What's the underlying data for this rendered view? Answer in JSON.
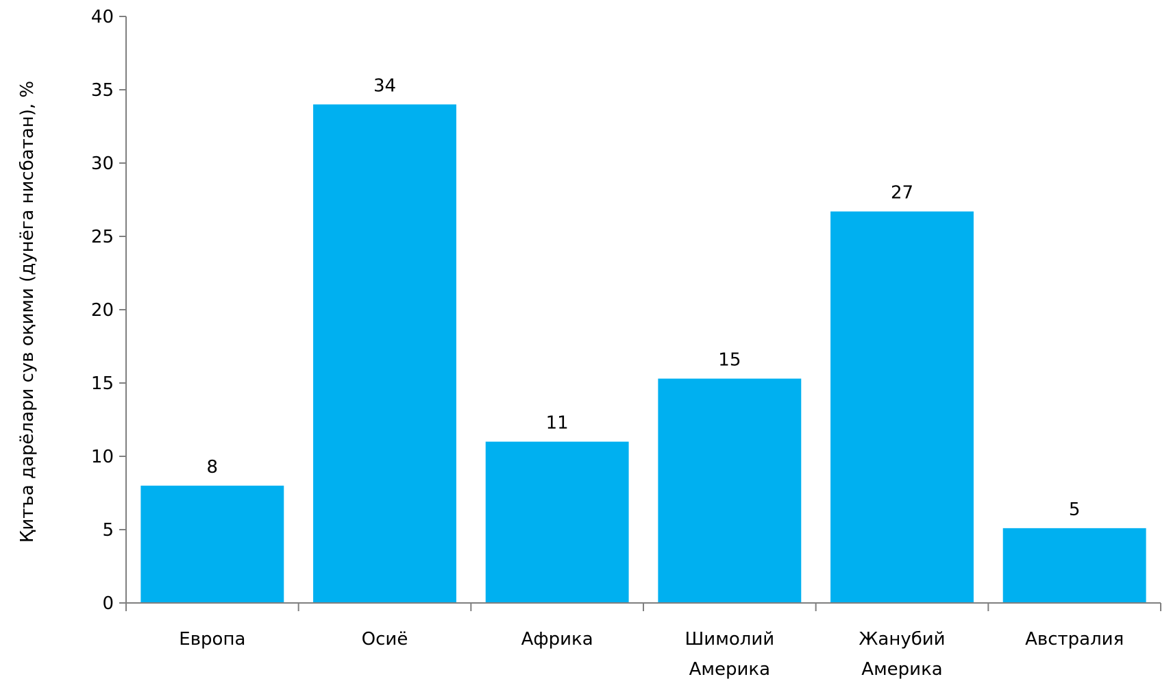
{
  "chart_data": {
    "type": "bar",
    "categories": [
      [
        "Европа"
      ],
      [
        "Осиё"
      ],
      [
        "Африка"
      ],
      [
        "Шимолий",
        "Америка"
      ],
      [
        "Жанубий",
        "Америка"
      ],
      [
        "Австралия"
      ]
    ],
    "values": [
      8,
      34,
      11,
      15.3,
      26.7,
      5.1
    ],
    "data_labels": [
      "8",
      "34",
      "11",
      "15",
      "27",
      "5"
    ],
    "title": "",
    "xlabel": "",
    "ylabel": "Қитъа дарёлари сув оқими (дунёга нисбатан), %",
    "ylim": [
      0,
      40
    ],
    "yticks": [
      0,
      5,
      10,
      15,
      20,
      25,
      30,
      35,
      40
    ],
    "grid": false,
    "legend": "none",
    "colors": {
      "bar": "#00b0f0",
      "axis": "#7f7f7f",
      "text": "#000000"
    }
  }
}
